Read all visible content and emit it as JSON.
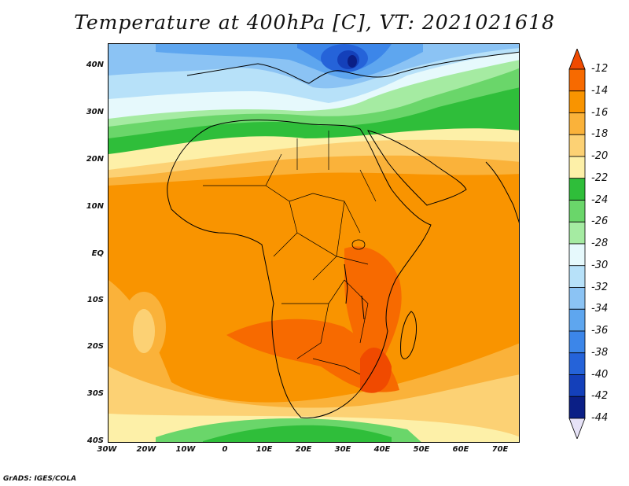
{
  "title": "Temperature at 400hPa [C], VT: 2021021618",
  "credit": "GrADS: IGES/COLA",
  "map": {
    "lat_labels": [
      "40N",
      "30N",
      "20N",
      "10N",
      "EQ",
      "10S",
      "20S",
      "30S",
      "40S"
    ],
    "lon_labels": [
      "30W",
      "20W",
      "10W",
      "0",
      "10E",
      "20E",
      "30E",
      "40E",
      "50E",
      "60E",
      "70E"
    ]
  },
  "colorbar": {
    "labels": [
      "-12",
      "-14",
      "-16",
      "-18",
      "-20",
      "-22",
      "-24",
      "-26",
      "-28",
      "-30",
      "-32",
      "-34",
      "-36",
      "-38",
      "-40",
      "-42",
      "-44"
    ],
    "colors": [
      "#f04a00",
      "#f76a00",
      "#f99400",
      "#fab23a",
      "#fcd174",
      "#fdf0a8",
      "#2fbe3a",
      "#6ad66a",
      "#a5eba2",
      "#e6f9fc",
      "#b7e1f9",
      "#8bc3f4",
      "#5ea6ef",
      "#3c86e9",
      "#2563d9",
      "#1440ba",
      "#0b1f86",
      "#e6e2f7"
    ]
  },
  "chart_data": {
    "type": "heatmap",
    "title": "Temperature at 400hPa [C], VT: 2021021618",
    "xlabel": "",
    "ylabel": "",
    "x_range": [
      "30W",
      "75E"
    ],
    "y_range": [
      "40S",
      "45N"
    ],
    "color_levels": [
      -12,
      -14,
      -16,
      -18,
      -20,
      -22,
      -24,
      -26,
      -28,
      -30,
      -32,
      -34,
      -36,
      -38,
      -40,
      -42,
      -44
    ],
    "colormap": [
      "#f04a00",
      "#f76a00",
      "#f99400",
      "#fab23a",
      "#fcd174",
      "#fdf0a8",
      "#2fbe3a",
      "#6ad66a",
      "#a5eba2",
      "#e6f9fc",
      "#b7e1f9",
      "#8bc3f4",
      "#5ea6ef",
      "#3c86e9",
      "#2563d9",
      "#1440ba",
      "#0b1f86",
      "#e6e2f7"
    ]
  }
}
